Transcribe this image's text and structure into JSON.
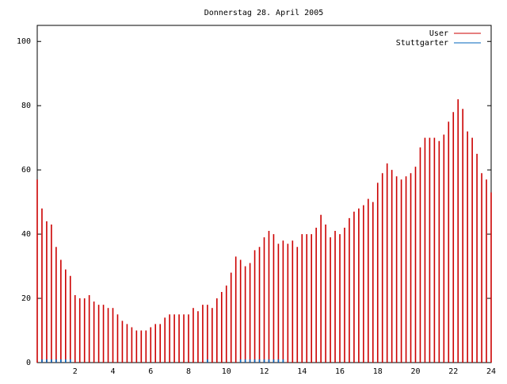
{
  "chart_data": {
    "type": "impulse",
    "title": "Donnerstag 28. April 2005",
    "x": [
      0,
      0.25,
      0.5,
      0.75,
      1,
      1.25,
      1.5,
      1.75,
      2,
      2.25,
      2.5,
      2.75,
      3,
      3.25,
      3.5,
      3.75,
      4,
      4.25,
      4.5,
      4.75,
      5,
      5.25,
      5.5,
      5.75,
      6,
      6.25,
      6.5,
      6.75,
      7,
      7.25,
      7.5,
      7.75,
      8,
      8.25,
      8.5,
      8.75,
      9,
      9.25,
      9.5,
      9.75,
      10,
      10.25,
      10.5,
      10.75,
      11,
      11.25,
      11.5,
      11.75,
      12,
      12.25,
      12.5,
      12.75,
      13,
      13.25,
      13.5,
      13.75,
      14,
      14.25,
      14.5,
      14.75,
      15,
      15.25,
      15.5,
      15.75,
      16,
      16.25,
      16.5,
      16.75,
      17,
      17.25,
      17.5,
      17.75,
      18,
      18.25,
      18.5,
      18.75,
      19,
      19.25,
      19.5,
      19.75,
      20,
      20.25,
      20.5,
      20.75,
      21,
      21.25,
      21.5,
      21.75,
      22,
      22.25,
      22.5,
      22.75,
      23,
      23.25,
      23.5,
      23.75,
      24
    ],
    "series": [
      {
        "name": "User",
        "color": "#cc0000",
        "values": [
          57,
          48,
          44,
          43,
          36,
          32,
          29,
          27,
          21,
          20,
          20,
          21,
          19,
          18,
          18,
          17,
          17,
          15,
          13,
          12,
          11,
          10,
          10,
          10,
          11,
          12,
          12,
          14,
          15,
          15,
          15,
          15,
          15,
          17,
          16,
          18,
          18,
          17,
          20,
          22,
          24,
          28,
          33,
          32,
          30,
          31,
          35,
          36,
          39,
          41,
          40,
          37,
          38,
          37,
          38,
          36,
          40,
          40,
          40,
          42,
          46,
          43,
          39,
          41,
          40,
          42,
          45,
          47,
          48,
          49,
          51,
          50,
          56,
          59,
          62,
          60,
          58,
          57,
          58,
          59,
          61,
          67,
          70,
          70,
          70,
          69,
          71,
          75,
          78,
          82,
          79,
          72,
          70,
          65,
          59,
          57,
          53
        ]
      },
      {
        "name": "Stuttgarter",
        "color": "#0066bb",
        "values": [
          0,
          1,
          1,
          1,
          1,
          1,
          1,
          1,
          0,
          0,
          0,
          0,
          0,
          0,
          0,
          0,
          0,
          0,
          0,
          0,
          0,
          0,
          0,
          0,
          0,
          0,
          0,
          0,
          0,
          0,
          0,
          0,
          0,
          0,
          0,
          0,
          1,
          0,
          0,
          0,
          0,
          0,
          0,
          1,
          1,
          1,
          1,
          1,
          1,
          1,
          1,
          1,
          1,
          0,
          0,
          0,
          0,
          0,
          0,
          0,
          0,
          0,
          0,
          0,
          0,
          0,
          0,
          0,
          0,
          0,
          0,
          0,
          0,
          0,
          0,
          0,
          0,
          0,
          0,
          0,
          0,
          0,
          0,
          0,
          0,
          0,
          0,
          0,
          0,
          0,
          0,
          0,
          0,
          0,
          0,
          0,
          0
        ]
      }
    ],
    "xlim": [
      0,
      24
    ],
    "xticks": [
      2,
      4,
      6,
      8,
      10,
      12,
      14,
      16,
      18,
      20,
      22,
      24
    ],
    "ylim": [
      0,
      105
    ],
    "yticks": [
      0,
      20,
      40,
      60,
      80,
      100
    ],
    "legend": "top-right"
  }
}
